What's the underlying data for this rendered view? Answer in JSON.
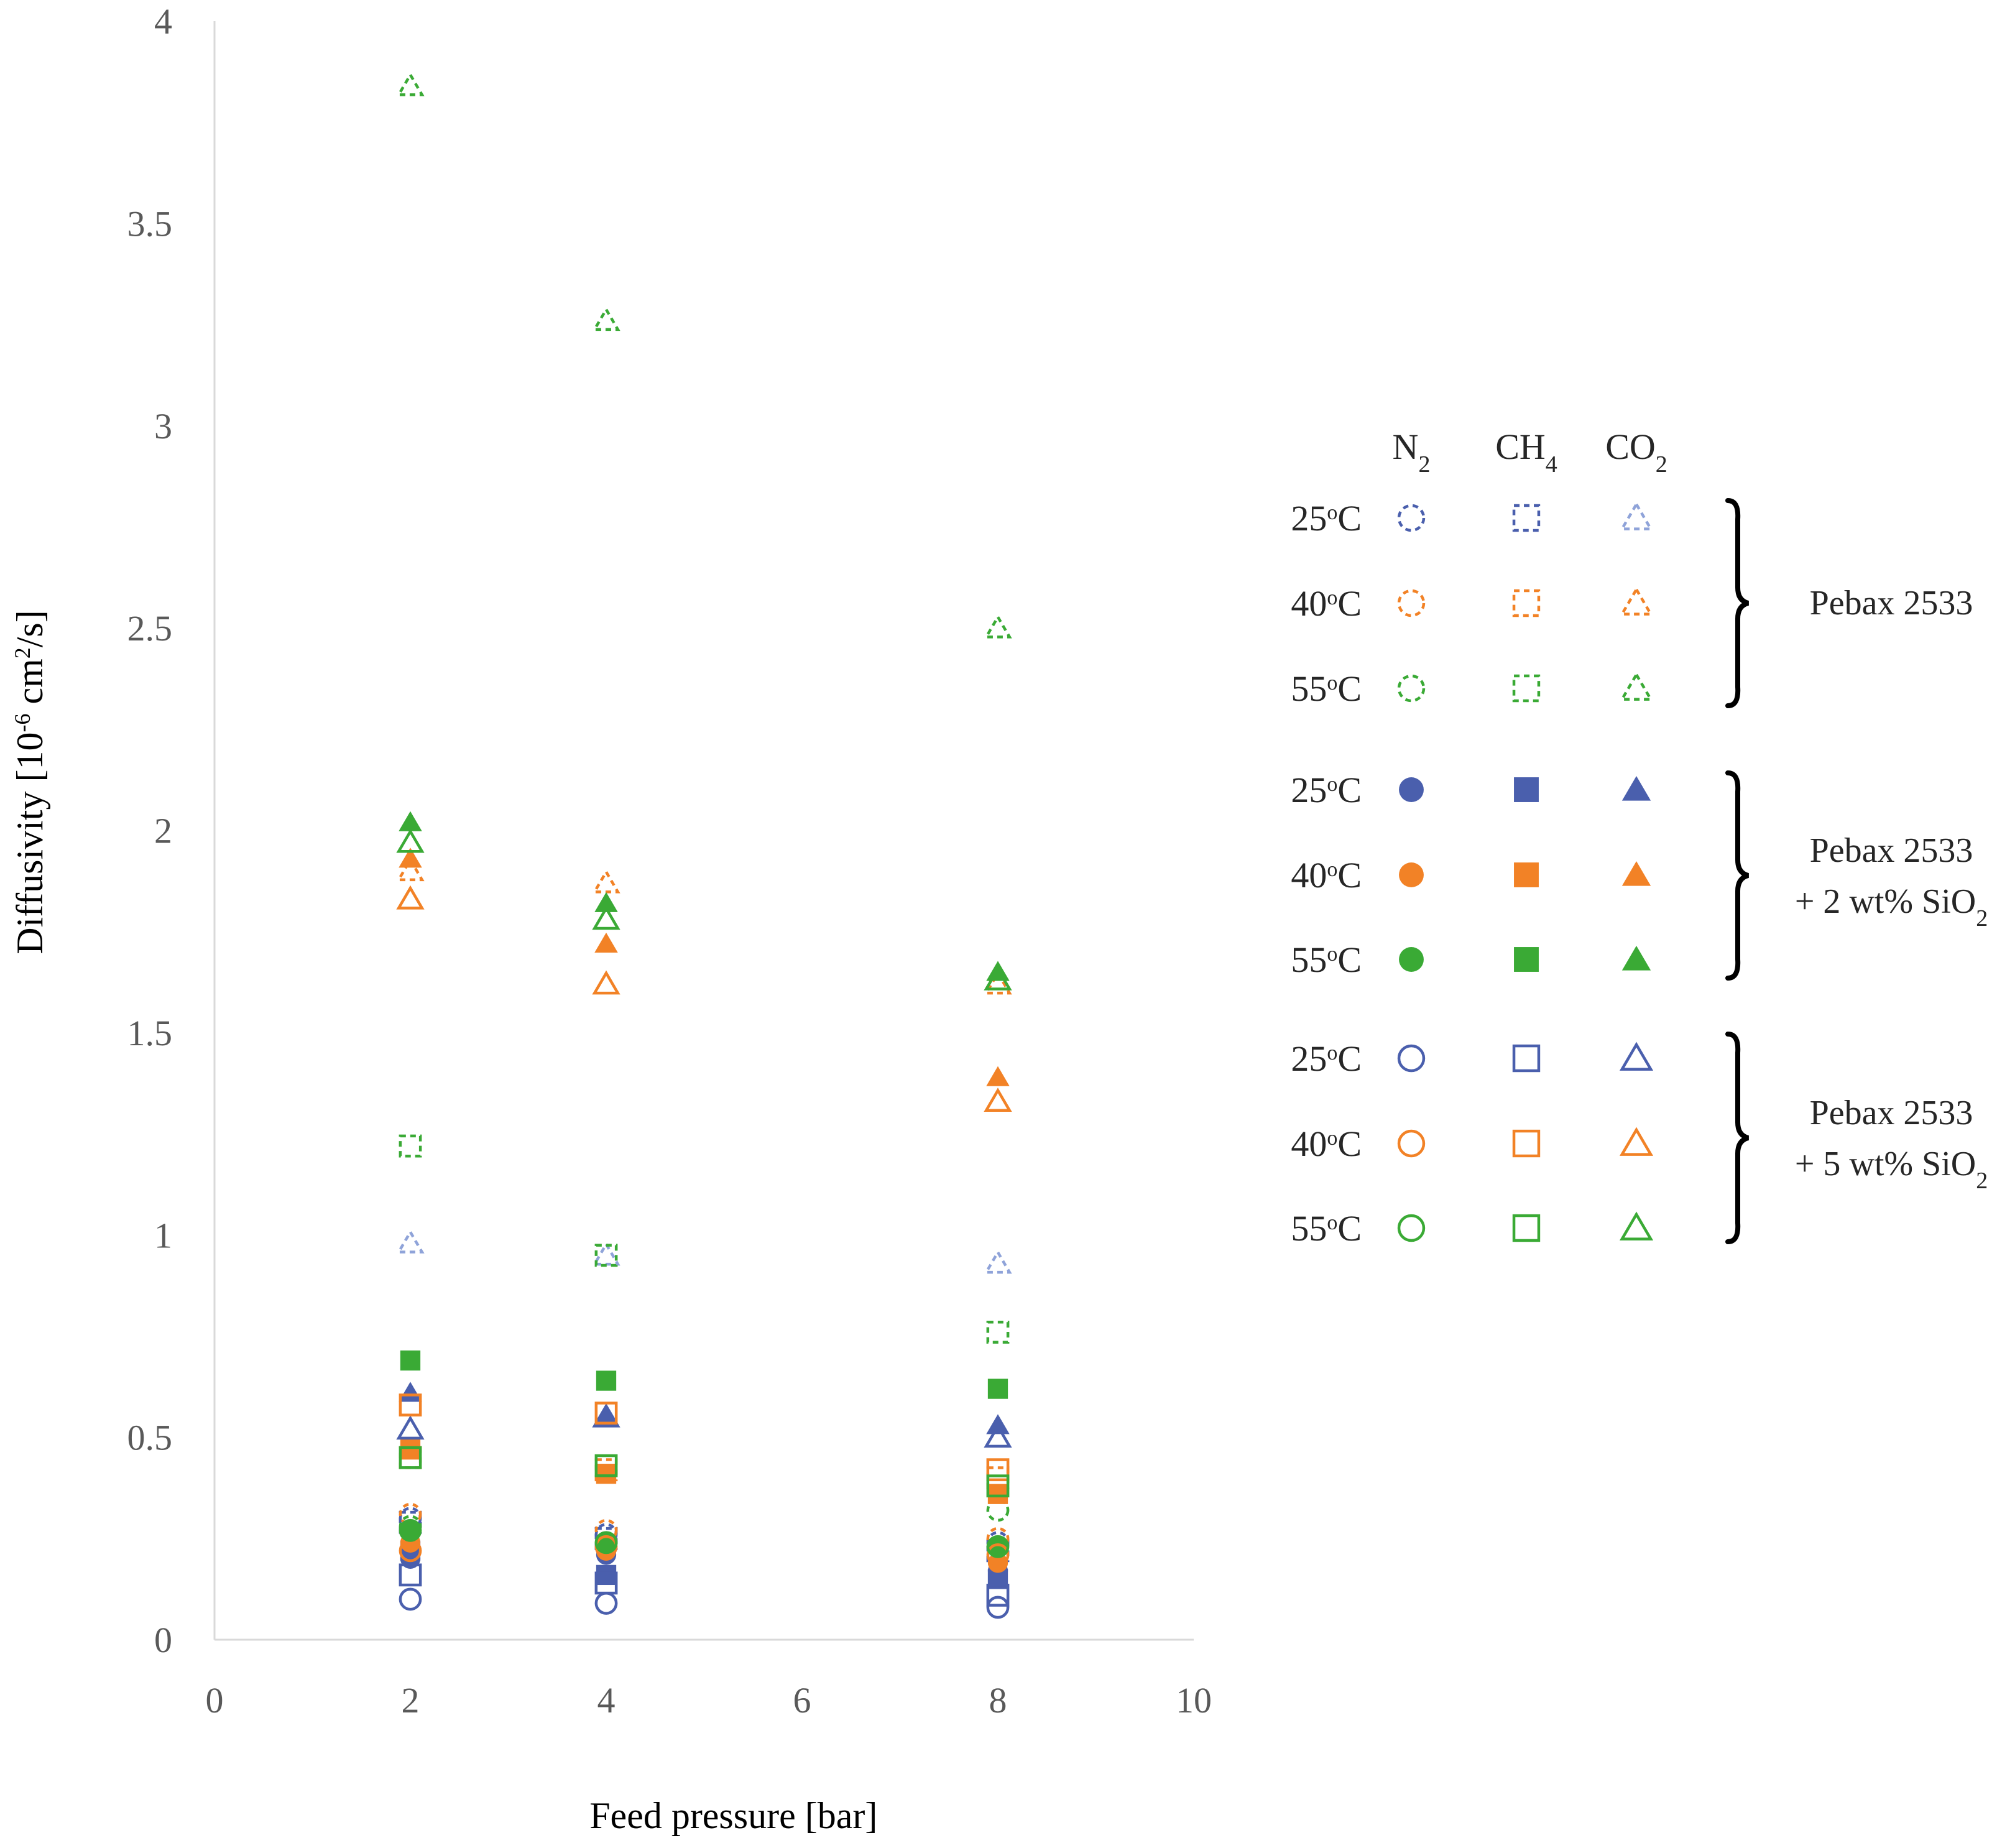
{
  "chart_data": {
    "type": "scatter",
    "title": "",
    "xlabel": "Feed pressure [bar]",
    "ylabel": "Diffusivity [10^-6 cm²/s]",
    "ylabel_parts": {
      "main": "Diffusivity [10",
      "exp1": "-6",
      "mid": " cm",
      "exp2": "2",
      "end": "/s]"
    },
    "xlim": [
      0,
      10
    ],
    "ylim": [
      0,
      4
    ],
    "xticks": [
      0,
      2,
      4,
      6,
      8,
      10
    ],
    "yticks": [
      0,
      0.5,
      1,
      1.5,
      2,
      2.5,
      3,
      3.5,
      4
    ],
    "grid": false,
    "legend_position": "right",
    "x": [
      2,
      4,
      8
    ],
    "series": [
      {
        "gas": "N2",
        "temperature": "25°C",
        "material": "Pebax 2533",
        "marker": "circle",
        "style": "dashed",
        "color": "#4a5fad",
        "y": [
          0.3,
          0.26,
          0.24
        ]
      },
      {
        "gas": "CH4",
        "temperature": "25°C",
        "material": "Pebax 2533",
        "marker": "square",
        "style": "dashed",
        "color": "#4a5fad",
        "y": [
          0.29,
          0.25,
          0.22
        ]
      },
      {
        "gas": "CO2",
        "temperature": "25°C",
        "material": "Pebax 2533",
        "marker": "triangle",
        "style": "dashed",
        "color": "#8fa3d9",
        "y": [
          0.98,
          0.95,
          0.93
        ]
      },
      {
        "gas": "N2",
        "temperature": "40°C",
        "material": "Pebax 2533",
        "marker": "circle",
        "style": "dashed",
        "color": "#f28226",
        "y": [
          0.31,
          0.27,
          0.25
        ]
      },
      {
        "gas": "CH4",
        "temperature": "40°C",
        "material": "Pebax 2533",
        "marker": "square",
        "style": "dashed",
        "color": "#f28226",
        "y": [
          0.45,
          0.42,
          0.4
        ]
      },
      {
        "gas": "CO2",
        "temperature": "40°C",
        "material": "Pebax 2533",
        "marker": "triangle",
        "style": "dashed",
        "color": "#f28226",
        "y": [
          1.9,
          1.87,
          1.62
        ]
      },
      {
        "gas": "N2",
        "temperature": "55°C",
        "material": "Pebax 2533",
        "marker": "circle",
        "style": "dashed",
        "color": "#3aaa35",
        "y": [
          0.28,
          0.24,
          0.32
        ]
      },
      {
        "gas": "CH4",
        "temperature": "55°C",
        "material": "Pebax 2533",
        "marker": "square",
        "style": "dashed",
        "color": "#3aaa35",
        "y": [
          1.22,
          0.95,
          0.76
        ]
      },
      {
        "gas": "CO2",
        "temperature": "55°C",
        "material": "Pebax 2533",
        "marker": "triangle",
        "style": "dashed",
        "color": "#3aaa35",
        "y": [
          3.84,
          3.26,
          2.5
        ]
      },
      {
        "gas": "N2",
        "temperature": "25°C",
        "material": "Pebax 2533 + 2 wt% SiO2",
        "marker": "circle",
        "style": "filled",
        "color": "#4a5fad",
        "y": [
          0.2,
          0.21,
          0.17
        ]
      },
      {
        "gas": "CH4",
        "temperature": "25°C",
        "material": "Pebax 2533 + 2 wt% SiO2",
        "marker": "square",
        "style": "filled",
        "color": "#4a5fad",
        "y": [
          0.22,
          0.16,
          0.15
        ]
      },
      {
        "gas": "CO2",
        "temperature": "25°C",
        "material": "Pebax 2533 + 2 wt% SiO2",
        "marker": "triangle",
        "style": "filled",
        "color": "#4a5fad",
        "y": [
          0.61,
          0.55,
          0.53
        ]
      },
      {
        "gas": "N2",
        "temperature": "40°C",
        "material": "Pebax 2533 + 2 wt% SiO2",
        "marker": "circle",
        "style": "filled",
        "color": "#f28226",
        "y": [
          0.24,
          0.22,
          0.19
        ]
      },
      {
        "gas": "CH4",
        "temperature": "40°C",
        "material": "Pebax 2533 + 2 wt% SiO2",
        "marker": "square",
        "style": "filled",
        "color": "#f28226",
        "y": [
          0.47,
          0.41,
          0.36
        ]
      },
      {
        "gas": "CO2",
        "temperature": "40°C",
        "material": "Pebax 2533 + 2 wt% SiO2",
        "marker": "triangle",
        "style": "filled",
        "color": "#f28226",
        "y": [
          1.93,
          1.72,
          1.39
        ]
      },
      {
        "gas": "N2",
        "temperature": "55°C",
        "material": "Pebax 2533 + 2 wt% SiO2",
        "marker": "circle",
        "style": "filled",
        "color": "#3aaa35",
        "y": [
          0.27,
          0.24,
          0.23
        ]
      },
      {
        "gas": "CH4",
        "temperature": "55°C",
        "material": "Pebax 2533 + 2 wt% SiO2",
        "marker": "square",
        "style": "filled",
        "color": "#3aaa35",
        "y": [
          0.69,
          0.64,
          0.62
        ]
      },
      {
        "gas": "CO2",
        "temperature": "55°C",
        "material": "Pebax 2533 + 2 wt% SiO2",
        "marker": "triangle",
        "style": "filled",
        "color": "#3aaa35",
        "y": [
          2.02,
          1.82,
          1.65
        ]
      },
      {
        "gas": "N2",
        "temperature": "25°C",
        "material": "Pebax 2533 + 5 wt% SiO2",
        "marker": "circle",
        "style": "open",
        "color": "#4a5fad",
        "y": [
          0.1,
          0.09,
          0.08
        ]
      },
      {
        "gas": "CH4",
        "temperature": "25°C",
        "material": "Pebax 2533 + 5 wt% SiO2",
        "marker": "square",
        "style": "open",
        "color": "#4a5fad",
        "y": [
          0.16,
          0.14,
          0.11
        ]
      },
      {
        "gas": "CO2",
        "temperature": "25°C",
        "material": "Pebax 2533 + 5 wt% SiO2",
        "marker": "triangle",
        "style": "open",
        "color": "#4a5fad",
        "y": [
          0.52,
          0.55,
          0.5
        ]
      },
      {
        "gas": "N2",
        "temperature": "40°C",
        "material": "Pebax 2533 + 5 wt% SiO2",
        "marker": "circle",
        "style": "open",
        "color": "#f28226",
        "y": [
          0.22,
          0.23,
          0.21
        ]
      },
      {
        "gas": "CH4",
        "temperature": "40°C",
        "material": "Pebax 2533 + 5 wt% SiO2",
        "marker": "square",
        "style": "open",
        "color": "#f28226",
        "y": [
          0.58,
          0.56,
          0.42
        ]
      },
      {
        "gas": "CO2",
        "temperature": "40°C",
        "material": "Pebax 2533 + 5 wt% SiO2",
        "marker": "triangle",
        "style": "open",
        "color": "#f28226",
        "y": [
          1.83,
          1.62,
          1.33
        ]
      },
      {
        "gas": "N2",
        "temperature": "55°C",
        "material": "Pebax 2533 + 5 wt% SiO2",
        "marker": "circle",
        "style": "open",
        "color": "#3aaa35",
        "y": [
          0.27,
          0.24,
          0.23
        ]
      },
      {
        "gas": "CH4",
        "temperature": "55°C",
        "material": "Pebax 2533 + 5 wt% SiO2",
        "marker": "square",
        "style": "open",
        "color": "#3aaa35",
        "y": [
          0.45,
          0.43,
          0.38
        ]
      },
      {
        "gas": "CO2",
        "temperature": "55°C",
        "material": "Pebax 2533 + 5 wt% SiO2",
        "marker": "triangle",
        "style": "open",
        "color": "#3aaa35",
        "y": [
          1.97,
          1.78,
          1.63
        ]
      }
    ]
  },
  "legend": {
    "gas_headers": [
      {
        "name": "N",
        "sub": "2"
      },
      {
        "name": "CH",
        "sub": "4"
      },
      {
        "name": "CO",
        "sub": "2"
      }
    ],
    "temperature_labels": [
      "25°C",
      "40°C",
      "55°C"
    ],
    "temperature_display": [
      {
        "num": "25",
        "deg": "o",
        "unit": "C"
      },
      {
        "num": "40",
        "deg": "o",
        "unit": "C"
      },
      {
        "num": "55",
        "deg": "o",
        "unit": "C"
      }
    ],
    "groups": [
      {
        "line1": "Pebax 2533",
        "line2": "",
        "line2_sub": ""
      },
      {
        "line1": "Pebax 2533",
        "line2": "+ 2 wt% SiO",
        "line2_sub": "2"
      },
      {
        "line1": "Pebax 2533",
        "line2": "+ 5 wt% SiO",
        "line2_sub": "2"
      }
    ],
    "colors": {
      "25": "#4a5fad",
      "40": "#f28226",
      "55": "#3aaa35",
      "co2_25_dashed": "#8fa3d9"
    }
  }
}
